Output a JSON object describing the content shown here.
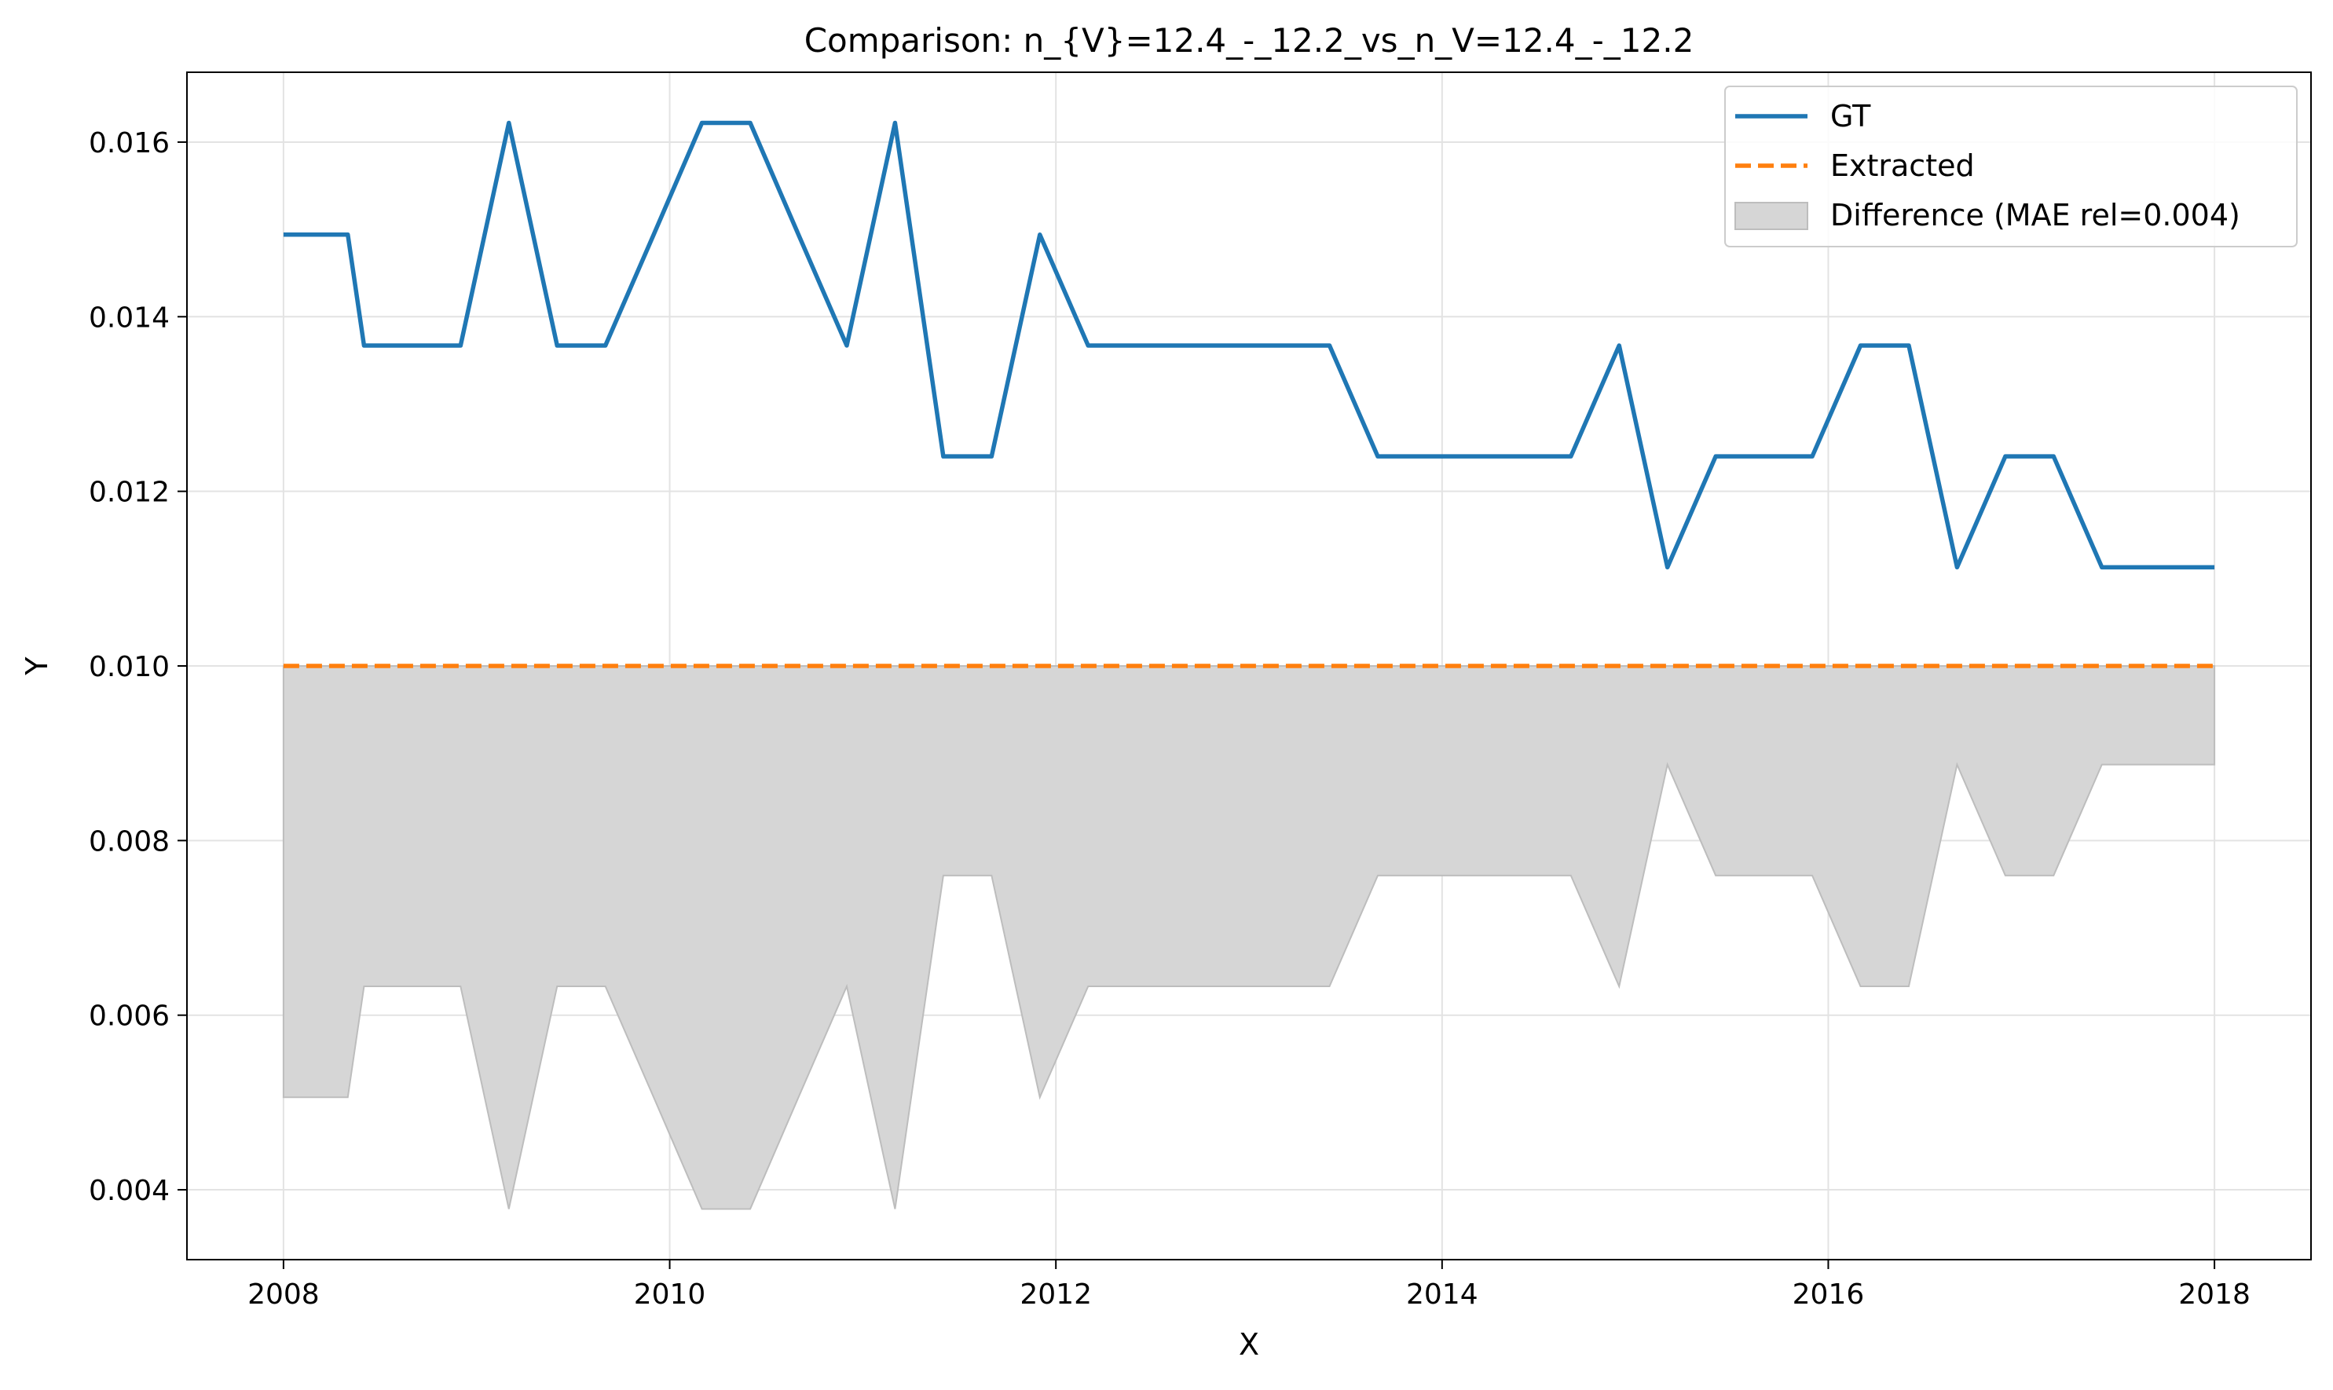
{
  "chart_data": {
    "type": "line",
    "title": "Comparison: n_{V}=12.4_-_12.2_vs_n_V=12.4_-_12.2",
    "xlabel": "X",
    "ylabel": "Y",
    "xlim": [
      2007.5,
      2018.5
    ],
    "ylim": [
      0.0032,
      0.0168
    ],
    "x_ticks": [
      2008,
      2010,
      2012,
      2014,
      2016,
      2018
    ],
    "x_tick_labels": [
      "2008",
      "2010",
      "2012",
      "2014",
      "2016",
      "2018"
    ],
    "y_ticks": [
      0.004,
      0.006,
      0.008,
      0.01,
      0.012,
      0.014,
      0.016
    ],
    "y_tick_labels": [
      "0.004",
      "0.006",
      "0.008",
      "0.010",
      "0.012",
      "0.014",
      "0.016"
    ],
    "grid": true,
    "legend_position": "top-right",
    "series": [
      {
        "name": "GT",
        "color": "#1f77b4",
        "style": "solid",
        "x": [
          2008.0,
          2008.333,
          2008.417,
          2008.917,
          2009.167,
          2009.417,
          2009.667,
          2009.917,
          2010.167,
          2010.417,
          2010.667,
          2010.917,
          2011.167,
          2011.417,
          2011.667,
          2011.917,
          2012.167,
          2012.417,
          2013.417,
          2013.667,
          2014.667,
          2014.917,
          2015.167,
          2015.417,
          2015.917,
          2016.167,
          2016.417,
          2016.667,
          2016.917,
          2017.167,
          2017.417,
          2018.0
        ],
        "y": [
          0.01494,
          0.01494,
          0.01367,
          0.01367,
          0.01622,
          0.01367,
          0.01367,
          0.01494,
          0.01622,
          0.01622,
          0.01494,
          0.01367,
          0.01622,
          0.0124,
          0.0124,
          0.01494,
          0.01367,
          0.01367,
          0.01367,
          0.0124,
          0.0124,
          0.01367,
          0.01113,
          0.0124,
          0.0124,
          0.01367,
          0.01367,
          0.01113,
          0.0124,
          0.0124,
          0.01113,
          0.01113
        ]
      },
      {
        "name": "Extracted",
        "color": "#ff7f0e",
        "style": "dashed",
        "x": [
          2008.0,
          2018.0
        ],
        "y": [
          0.01,
          0.01
        ]
      }
    ],
    "difference": {
      "name": "Difference (MAE rel=0.004)",
      "color": "#d6d6d6",
      "edge_color": "#bdbdbd",
      "x": [
        2008.0,
        2008.333,
        2008.417,
        2008.917,
        2009.167,
        2009.417,
        2009.667,
        2009.917,
        2010.167,
        2010.417,
        2010.667,
        2010.917,
        2011.167,
        2011.417,
        2011.667,
        2011.917,
        2012.167,
        2012.417,
        2013.417,
        2013.667,
        2014.667,
        2014.917,
        2015.167,
        2015.417,
        2015.917,
        2016.167,
        2016.417,
        2016.667,
        2016.917,
        2017.167,
        2017.417,
        2018.0
      ],
      "y_top": 0.01,
      "y_bottom": [
        0.00506,
        0.00506,
        0.00633,
        0.00633,
        0.00378,
        0.00633,
        0.00633,
        0.00506,
        0.00378,
        0.00378,
        0.00506,
        0.00633,
        0.00378,
        0.0076,
        0.0076,
        0.00506,
        0.00633,
        0.00633,
        0.00633,
        0.0076,
        0.0076,
        0.00633,
        0.00887,
        0.0076,
        0.0076,
        0.00633,
        0.00633,
        0.00887,
        0.0076,
        0.0076,
        0.00887,
        0.00887
      ]
    }
  }
}
